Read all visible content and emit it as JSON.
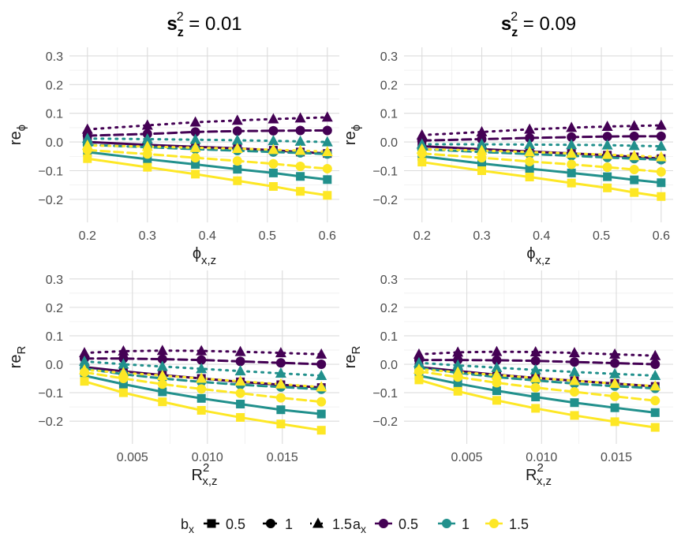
{
  "colors": {
    "0.5": "#440154",
    "1": "#21908C",
    "1.5": "#FDE725",
    "grid": "#dcdcdc"
  },
  "column_titles": [
    {
      "main": "s",
      "sub": "z",
      "sup": "2",
      "rest": " = 0.01"
    },
    {
      "main": "s",
      "sub": "z",
      "sup": "2",
      "rest": " = 0.09"
    }
  ],
  "legend": {
    "bx_title": {
      "main": "b",
      "sub": "x"
    },
    "ax_title": {
      "main": "a",
      "sub": "x"
    },
    "bx_labels": [
      "0.5",
      "1",
      "1.5"
    ],
    "ax_labels": [
      "0.5",
      "1",
      "1.5"
    ]
  },
  "chart_data": [
    {
      "type": "line",
      "panel": "top-left",
      "title": "s_z^2 = 0.01",
      "ylabel": {
        "main": "re",
        "sub": "ϕ"
      },
      "xlabel": {
        "main": "ϕ",
        "sub": "x,z"
      },
      "xlim": [
        0.17,
        0.62
      ],
      "ylim": [
        -0.28,
        0.33
      ],
      "xticks": [
        0.2,
        0.3,
        0.4,
        0.5,
        0.6
      ],
      "xtick_labels": [
        "0.2",
        "0.3",
        "0.4",
        "0.5",
        "0.6"
      ],
      "yticks": [
        -0.2,
        -0.1,
        0.0,
        0.1,
        0.2,
        0.3
      ],
      "ytick_labels": [
        "−0.2",
        "−0.1",
        "0.0",
        "0.1",
        "0.2",
        "0.3"
      ],
      "x": [
        0.2,
        0.3,
        0.38,
        0.45,
        0.51,
        0.555,
        0.6
      ],
      "series": [
        {
          "ax": "0.5",
          "bx": "0.5",
          "values": [
            0.0,
            -0.01,
            -0.017,
            -0.022,
            -0.029,
            -0.035,
            -0.04
          ]
        },
        {
          "ax": "0.5",
          "bx": "1",
          "values": [
            0.022,
            0.028,
            0.035,
            0.038,
            0.039,
            0.04,
            0.04
          ]
        },
        {
          "ax": "0.5",
          "bx": "1.5",
          "values": [
            0.044,
            0.058,
            0.069,
            0.075,
            0.08,
            0.083,
            0.086
          ]
        },
        {
          "ax": "1",
          "bx": "0.5",
          "values": [
            -0.035,
            -0.06,
            -0.078,
            -0.095,
            -0.108,
            -0.12,
            -0.131
          ]
        },
        {
          "ax": "1",
          "bx": "1",
          "values": [
            -0.01,
            -0.018,
            -0.025,
            -0.03,
            -0.035,
            -0.038,
            -0.042
          ]
        },
        {
          "ax": "1",
          "bx": "1.5",
          "values": [
            0.012,
            0.01,
            0.008,
            0.006,
            0.004,
            0.002,
            0.0
          ]
        },
        {
          "ax": "1.5",
          "bx": "0.5",
          "values": [
            -0.058,
            -0.088,
            -0.112,
            -0.135,
            -0.155,
            -0.172,
            -0.186
          ]
        },
        {
          "ax": "1.5",
          "bx": "1",
          "values": [
            -0.028,
            -0.042,
            -0.055,
            -0.066,
            -0.076,
            -0.085,
            -0.093
          ]
        },
        {
          "ax": "1.5",
          "bx": "1.5",
          "values": [
            -0.012,
            -0.016,
            -0.02,
            -0.023,
            -0.027,
            -0.03,
            -0.034
          ]
        }
      ]
    },
    {
      "type": "line",
      "panel": "top-right",
      "title": "s_z^2 = 0.09",
      "ylabel": {
        "main": "re",
        "sub": "ϕ"
      },
      "xlabel": {
        "main": "ϕ",
        "sub": "x,z"
      },
      "xlim": [
        0.17,
        0.62
      ],
      "ylim": [
        -0.28,
        0.33
      ],
      "xticks": [
        0.2,
        0.3,
        0.4,
        0.5,
        0.6
      ],
      "xtick_labels": [
        "0.2",
        "0.3",
        "0.4",
        "0.5",
        "0.6"
      ],
      "yticks": [
        -0.2,
        -0.1,
        0.0,
        0.1,
        0.2,
        0.3
      ],
      "ytick_labels": [
        "−0.2",
        "−0.1",
        "0.0",
        "0.1",
        "0.2",
        "0.3"
      ],
      "x": [
        0.2,
        0.3,
        0.38,
        0.45,
        0.51,
        0.555,
        0.6
      ],
      "series": [
        {
          "ax": "0.5",
          "bx": "0.5",
          "values": [
            -0.015,
            -0.025,
            -0.033,
            -0.04,
            -0.046,
            -0.052,
            -0.058
          ]
        },
        {
          "ax": "0.5",
          "bx": "1",
          "values": [
            0.005,
            0.01,
            0.014,
            0.017,
            0.019,
            0.02,
            0.02
          ]
        },
        {
          "ax": "0.5",
          "bx": "1.5",
          "values": [
            0.024,
            0.035,
            0.044,
            0.05,
            0.054,
            0.056,
            0.058
          ]
        },
        {
          "ax": "1",
          "bx": "0.5",
          "values": [
            -0.05,
            -0.075,
            -0.093,
            -0.108,
            -0.121,
            -0.132,
            -0.142
          ]
        },
        {
          "ax": "1",
          "bx": "1",
          "values": [
            -0.025,
            -0.035,
            -0.042,
            -0.048,
            -0.054,
            -0.058,
            -0.062
          ]
        },
        {
          "ax": "1",
          "bx": "1.5",
          "values": [
            -0.008,
            -0.008,
            -0.009,
            -0.01,
            -0.011,
            -0.013,
            -0.015
          ]
        },
        {
          "ax": "1.5",
          "bx": "0.5",
          "values": [
            -0.07,
            -0.1,
            -0.122,
            -0.143,
            -0.16,
            -0.176,
            -0.19
          ]
        },
        {
          "ax": "1.5",
          "bx": "1",
          "values": [
            -0.04,
            -0.055,
            -0.068,
            -0.078,
            -0.088,
            -0.096,
            -0.104
          ]
        },
        {
          "ax": "1.5",
          "bx": "1.5",
          "values": [
            -0.025,
            -0.03,
            -0.035,
            -0.04,
            -0.044,
            -0.048,
            -0.052
          ]
        }
      ]
    },
    {
      "type": "line",
      "panel": "bottom-left",
      "ylabel": {
        "main": "re",
        "sub": "R"
      },
      "xlabel": {
        "main": "R",
        "sub": "x,z",
        "sup": "2"
      },
      "xlim": [
        0.0008,
        0.0188
      ],
      "ylim": [
        -0.28,
        0.33
      ],
      "xticks": [
        0.005,
        0.01,
        0.015
      ],
      "xtick_labels": [
        "0.005",
        "0.010",
        "0.015"
      ],
      "yticks": [
        -0.2,
        -0.1,
        0.0,
        0.1,
        0.2,
        0.3
      ],
      "ytick_labels": [
        "−0.2",
        "−0.1",
        "0.0",
        "0.1",
        "0.2",
        "0.3"
      ],
      "x": [
        0.0018,
        0.0044,
        0.007,
        0.0096,
        0.0122,
        0.0149,
        0.0176
      ],
      "series": [
        {
          "ax": "0.5",
          "bx": "0.5",
          "values": [
            -0.01,
            -0.025,
            -0.038,
            -0.05,
            -0.062,
            -0.072,
            -0.082
          ]
        },
        {
          "ax": "0.5",
          "bx": "1",
          "values": [
            0.02,
            0.02,
            0.018,
            0.015,
            0.01,
            0.005,
            0.0
          ]
        },
        {
          "ax": "0.5",
          "bx": "1.5",
          "values": [
            0.04,
            0.046,
            0.048,
            0.047,
            0.044,
            0.04,
            0.035
          ]
        },
        {
          "ax": "1",
          "bx": "0.5",
          "values": [
            -0.04,
            -0.07,
            -0.097,
            -0.12,
            -0.14,
            -0.16,
            -0.175
          ]
        },
        {
          "ax": "1",
          "bx": "1",
          "values": [
            -0.015,
            -0.035,
            -0.05,
            -0.062,
            -0.072,
            -0.08,
            -0.088
          ]
        },
        {
          "ax": "1",
          "bx": "1.5",
          "values": [
            0.01,
            0.0,
            -0.008,
            -0.016,
            -0.024,
            -0.032,
            -0.04
          ]
        },
        {
          "ax": "1.5",
          "bx": "0.5",
          "values": [
            -0.06,
            -0.1,
            -0.132,
            -0.162,
            -0.187,
            -0.21,
            -0.232
          ]
        },
        {
          "ax": "1.5",
          "bx": "1",
          "values": [
            -0.028,
            -0.05,
            -0.07,
            -0.087,
            -0.102,
            -0.118,
            -0.132
          ]
        },
        {
          "ax": "1.5",
          "bx": "1.5",
          "values": [
            -0.02,
            -0.03,
            -0.04,
            -0.05,
            -0.06,
            -0.07,
            -0.08
          ]
        }
      ]
    },
    {
      "type": "line",
      "panel": "bottom-right",
      "ylabel": {
        "main": "re",
        "sub": "R"
      },
      "xlabel": {
        "main": "R",
        "sub": "x,z",
        "sup": "2"
      },
      "xlim": [
        0.0008,
        0.0188
      ],
      "ylim": [
        -0.28,
        0.33
      ],
      "xticks": [
        0.005,
        0.01,
        0.015
      ],
      "xtick_labels": [
        "0.005",
        "0.010",
        "0.015"
      ],
      "yticks": [
        -0.2,
        -0.1,
        0.0,
        0.1,
        0.2,
        0.3
      ],
      "ytick_labels": [
        "−0.2",
        "−0.1",
        "0.0",
        "0.1",
        "0.2",
        "0.3"
      ],
      "x": [
        0.0018,
        0.0044,
        0.007,
        0.0096,
        0.0122,
        0.0149,
        0.0176
      ],
      "series": [
        {
          "ax": "0.5",
          "bx": "0.5",
          "values": [
            -0.01,
            -0.024,
            -0.037,
            -0.048,
            -0.058,
            -0.068,
            -0.078
          ]
        },
        {
          "ax": "0.5",
          "bx": "1",
          "values": [
            0.015,
            0.015,
            0.014,
            0.012,
            0.008,
            0.004,
            0.0
          ]
        },
        {
          "ax": "0.5",
          "bx": "1.5",
          "values": [
            0.035,
            0.042,
            0.044,
            0.043,
            0.04,
            0.035,
            0.03
          ]
        },
        {
          "ax": "1",
          "bx": "0.5",
          "values": [
            -0.04,
            -0.068,
            -0.093,
            -0.115,
            -0.135,
            -0.153,
            -0.17
          ]
        },
        {
          "ax": "1",
          "bx": "1",
          "values": [
            -0.012,
            -0.03,
            -0.045,
            -0.057,
            -0.068,
            -0.077,
            -0.085
          ]
        },
        {
          "ax": "1",
          "bx": "1.5",
          "values": [
            0.005,
            -0.004,
            -0.012,
            -0.02,
            -0.027,
            -0.034,
            -0.04
          ]
        },
        {
          "ax": "1.5",
          "bx": "0.5",
          "values": [
            -0.055,
            -0.095,
            -0.127,
            -0.155,
            -0.18,
            -0.202,
            -0.222
          ]
        },
        {
          "ax": "1.5",
          "bx": "1",
          "values": [
            -0.025,
            -0.045,
            -0.065,
            -0.082,
            -0.097,
            -0.113,
            -0.128
          ]
        },
        {
          "ax": "1.5",
          "bx": "1.5",
          "values": [
            -0.018,
            -0.028,
            -0.038,
            -0.048,
            -0.058,
            -0.068,
            -0.077
          ]
        }
      ]
    }
  ]
}
